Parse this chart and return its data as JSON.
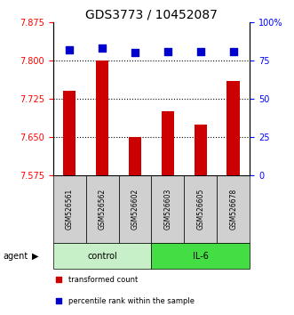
{
  "title": "GDS3773 / 10452087",
  "samples": [
    "GSM526561",
    "GSM526562",
    "GSM526602",
    "GSM526603",
    "GSM526605",
    "GSM526678"
  ],
  "bar_values": [
    7.74,
    7.8,
    7.65,
    7.7,
    7.675,
    7.76
  ],
  "percentile_values": [
    82,
    83,
    80,
    81,
    81,
    81
  ],
  "ymin": 7.575,
  "ymax": 7.875,
  "yticks": [
    7.575,
    7.65,
    7.725,
    7.8,
    7.875
  ],
  "y2min": 0,
  "y2max": 100,
  "y2ticks": [
    0,
    25,
    50,
    75,
    100
  ],
  "y2ticklabels": [
    "0",
    "25",
    "50",
    "75",
    "100%"
  ],
  "bar_color": "#cc0000",
  "dot_color": "#0000cc",
  "groups": [
    {
      "label": "control",
      "start": 0,
      "end": 3,
      "color": "#c8f0c8"
    },
    {
      "label": "IL-6",
      "start": 3,
      "end": 6,
      "color": "#44dd44"
    }
  ],
  "group_row_label": "agent",
  "legend_items": [
    {
      "color": "#cc0000",
      "label": "transformed count"
    },
    {
      "color": "#0000cc",
      "label": "percentile rank within the sample"
    }
  ],
  "dot_size": 40,
  "bar_width": 0.4,
  "sample_bg": "#d0d0d0"
}
